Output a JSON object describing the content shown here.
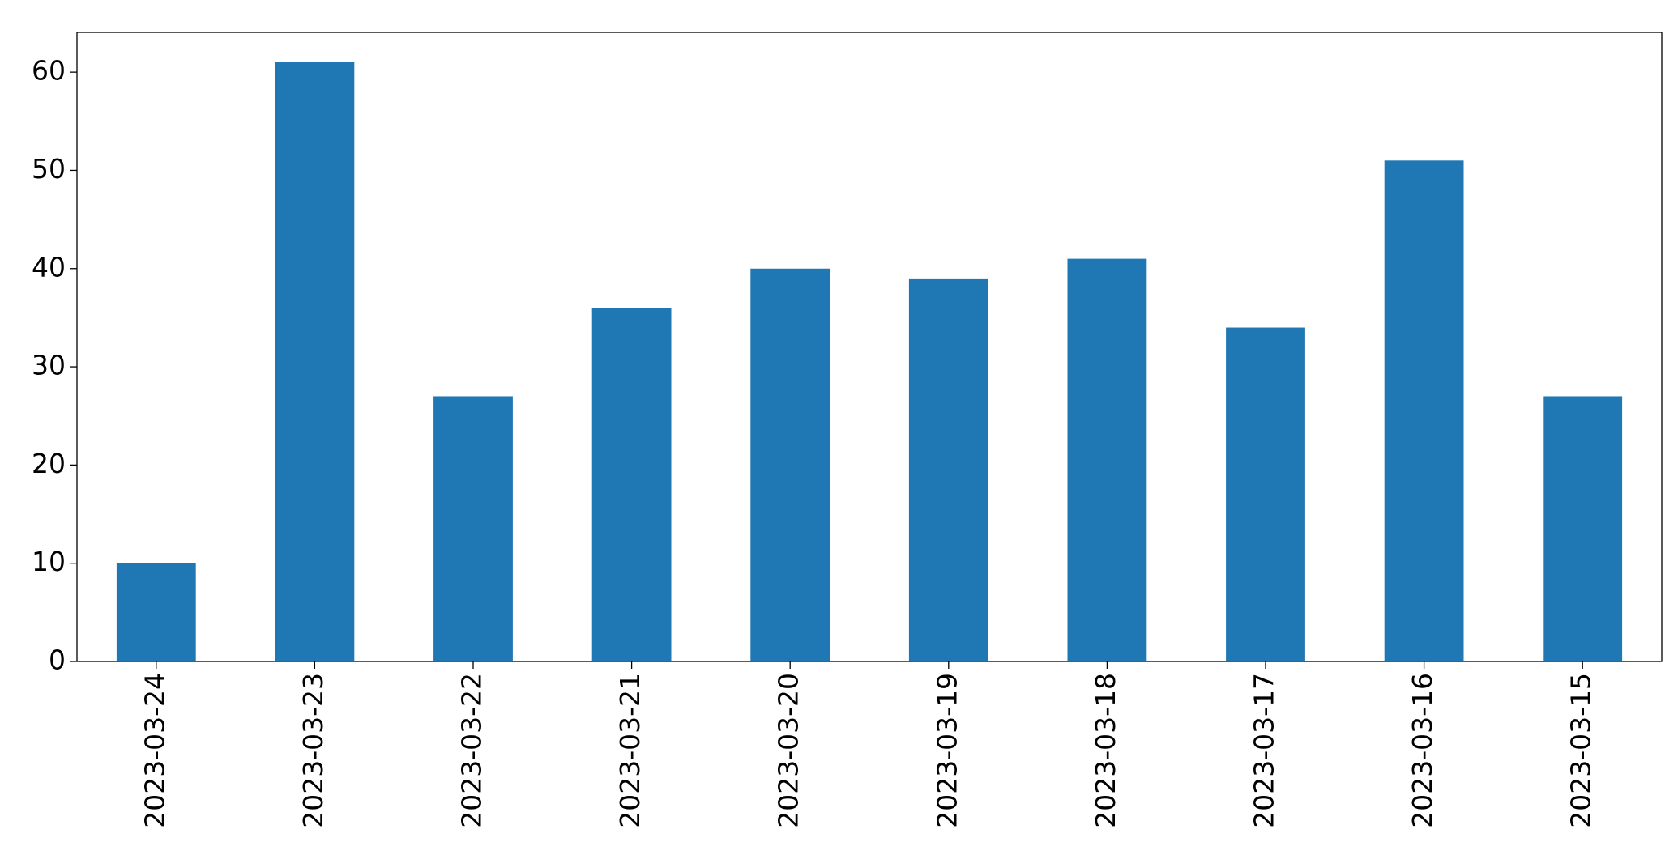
{
  "chart_data": {
    "type": "bar",
    "categories": [
      "2023-03-24",
      "2023-03-23",
      "2023-03-22",
      "2023-03-21",
      "2023-03-20",
      "2023-03-19",
      "2023-03-18",
      "2023-03-17",
      "2023-03-16",
      "2023-03-15"
    ],
    "values": [
      10,
      61,
      27,
      36,
      40,
      39,
      41,
      34,
      51,
      27
    ],
    "color": "#1f77b4",
    "ylim": [
      0,
      64.05
    ],
    "yticks": [
      0,
      10,
      20,
      30,
      40,
      50,
      60
    ],
    "grid": false
  }
}
